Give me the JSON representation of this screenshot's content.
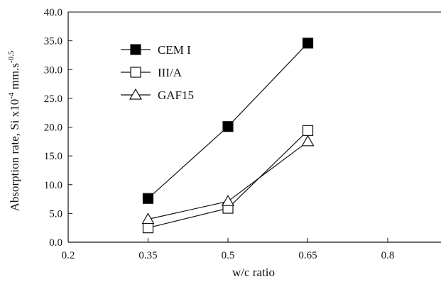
{
  "chart_data": {
    "type": "line",
    "xlabel": "w/c ratio",
    "ylabel": {
      "main": "Absorption rate, Si  x10",
      "exp1": "-4",
      "mid": "  mm.s",
      "exp2": "-0.5"
    },
    "xlim": [
      0.2,
      0.9
    ],
    "ylim": [
      0,
      40
    ],
    "x_ticks": [
      0.2,
      0.35,
      0.5,
      0.65,
      0.8
    ],
    "x_tick_labels": [
      "0.2",
      "0.35",
      "0.5",
      "0.65",
      "0.8"
    ],
    "y_ticks": [
      0,
      5,
      10,
      15,
      20,
      25,
      30,
      35,
      40
    ],
    "y_tick_labels": [
      "0.0",
      "5.0",
      "10.0",
      "15.0",
      "20.0",
      "25.0",
      "30.0",
      "35.0",
      "40.0"
    ],
    "grid": false,
    "legend_position": "top-left",
    "x": [
      0.35,
      0.5,
      0.65
    ],
    "series": [
      {
        "name": "CEM I",
        "marker": "filled-square",
        "values": [
          7.6,
          20.1,
          34.6
        ]
      },
      {
        "name": "III/A",
        "marker": "open-square",
        "values": [
          2.5,
          5.9,
          19.4
        ]
      },
      {
        "name": "GAF15",
        "marker": "open-triangle",
        "values": [
          4.0,
          7.1,
          17.5
        ]
      }
    ],
    "colors": {
      "line": "#111111",
      "fill": "#000000",
      "open_fill": "#ffffff"
    }
  }
}
